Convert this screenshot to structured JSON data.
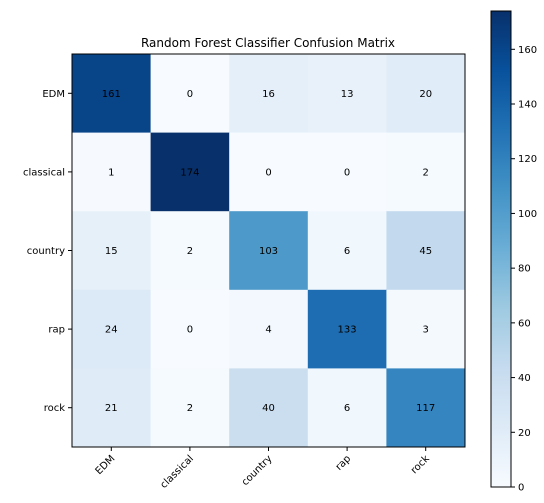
{
  "chart_data": {
    "type": "heatmap",
    "title": "Random Forest Classifier Confusion Matrix",
    "rows": [
      "EDM",
      "classical",
      "country",
      "rap",
      "rock"
    ],
    "columns": [
      "EDM",
      "classical",
      "country",
      "rap",
      "rock"
    ],
    "values": [
      [
        161,
        0,
        16,
        13,
        20
      ],
      [
        1,
        174,
        0,
        0,
        2
      ],
      [
        15,
        2,
        103,
        6,
        45
      ],
      [
        24,
        0,
        4,
        133,
        3
      ],
      [
        21,
        2,
        40,
        6,
        117
      ]
    ],
    "colormap": "Blues",
    "vmin": 0,
    "vmax": 174,
    "colorbar_ticks": [
      0,
      20,
      40,
      60,
      80,
      100,
      120,
      140,
      160
    ],
    "colorbar_tick_labels": [
      "0",
      "20",
      "40",
      "60",
      "80",
      "100",
      "120",
      "140",
      "160"
    ],
    "colorbar_position": "right",
    "grid": false
  }
}
